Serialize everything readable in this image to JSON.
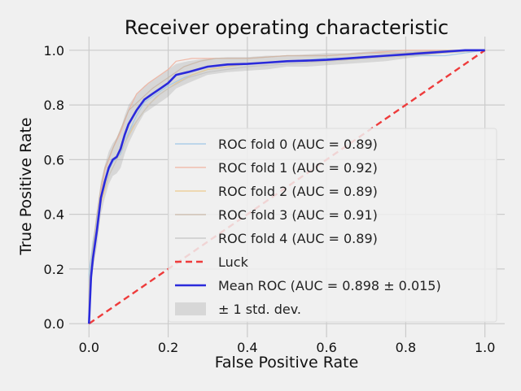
{
  "chart_data": {
    "type": "line",
    "title": "Receiver operating characteristic",
    "xlabel": "False Positive Rate",
    "ylabel": "True Positive Rate",
    "xlim": [
      -0.05,
      1.05
    ],
    "ylim": [
      -0.05,
      1.05
    ],
    "xticks": [
      0.0,
      0.2,
      0.4,
      0.6,
      0.8,
      1.0
    ],
    "yticks": [
      0.0,
      0.2,
      0.4,
      0.6,
      0.8,
      1.0
    ],
    "xtick_labels": [
      "0.0",
      "0.2",
      "0.4",
      "0.6",
      "0.8",
      "1.0"
    ],
    "ytick_labels": [
      "0.0",
      "0.2",
      "0.4",
      "0.6",
      "0.8",
      "1.0"
    ],
    "grid": true,
    "legend_position": "lower-right",
    "series": [
      {
        "name": "ROC fold 0 (AUC = 0.89)",
        "color": "#9ec6e6",
        "x": [
          0,
          0,
          0.01,
          0.02,
          0.03,
          0.04,
          0.05,
          0.06,
          0.08,
          0.1,
          0.12,
          0.14,
          0.17,
          0.2,
          0.24,
          0.3,
          0.4,
          0.5,
          0.6,
          0.7,
          0.8,
          0.9,
          1.0
        ],
        "y": [
          0,
          0.18,
          0.3,
          0.38,
          0.46,
          0.52,
          0.56,
          0.59,
          0.62,
          0.7,
          0.76,
          0.81,
          0.84,
          0.87,
          0.9,
          0.93,
          0.95,
          0.96,
          0.97,
          0.97,
          0.98,
          0.98,
          1.0
        ]
      },
      {
        "name": "ROC fold 1 (AUC = 0.92)",
        "color": "#f0b3a0",
        "x": [
          0,
          0,
          0.01,
          0.02,
          0.03,
          0.04,
          0.06,
          0.08,
          0.1,
          0.12,
          0.15,
          0.18,
          0.2,
          0.22,
          0.26,
          0.3,
          0.4,
          0.5,
          0.6,
          0.7,
          0.8,
          0.9,
          1.0
        ],
        "y": [
          0,
          0.12,
          0.24,
          0.36,
          0.48,
          0.56,
          0.64,
          0.7,
          0.78,
          0.84,
          0.88,
          0.91,
          0.93,
          0.96,
          0.97,
          0.97,
          0.97,
          0.98,
          0.98,
          0.99,
          1.0,
          1.0,
          1.0
        ]
      },
      {
        "name": "ROC fold 2 (AUC = 0.89)",
        "color": "#ecc98c",
        "x": [
          0,
          0,
          0.01,
          0.02,
          0.03,
          0.05,
          0.07,
          0.09,
          0.12,
          0.15,
          0.18,
          0.22,
          0.26,
          0.3,
          0.35,
          0.4,
          0.5,
          0.6,
          0.7,
          0.8,
          0.9,
          1.0
        ],
        "y": [
          0,
          0.1,
          0.22,
          0.34,
          0.44,
          0.54,
          0.6,
          0.66,
          0.74,
          0.8,
          0.84,
          0.88,
          0.91,
          0.93,
          0.94,
          0.95,
          0.96,
          0.96,
          0.97,
          0.98,
          0.99,
          1.0
        ]
      },
      {
        "name": "ROC fold 3 (AUC = 0.91)",
        "color": "#c9b8a8",
        "x": [
          0,
          0,
          0.01,
          0.02,
          0.03,
          0.04,
          0.06,
          0.08,
          0.1,
          0.13,
          0.16,
          0.2,
          0.24,
          0.28,
          0.32,
          0.4,
          0.5,
          0.6,
          0.7,
          0.8,
          0.9,
          1.0
        ],
        "y": [
          0,
          0.14,
          0.28,
          0.4,
          0.5,
          0.57,
          0.64,
          0.71,
          0.78,
          0.82,
          0.86,
          0.9,
          0.94,
          0.96,
          0.97,
          0.97,
          0.98,
          0.98,
          0.99,
          0.99,
          1.0,
          1.0
        ]
      },
      {
        "name": "ROC fold 4 (AUC = 0.89)",
        "color": "#c4c4c4",
        "x": [
          0,
          0,
          0.01,
          0.02,
          0.03,
          0.05,
          0.07,
          0.09,
          0.11,
          0.14,
          0.17,
          0.2,
          0.25,
          0.3,
          0.4,
          0.5,
          0.6,
          0.7,
          0.8,
          0.9,
          1.0
        ],
        "y": [
          0,
          0.16,
          0.26,
          0.36,
          0.46,
          0.54,
          0.6,
          0.66,
          0.72,
          0.78,
          0.83,
          0.86,
          0.9,
          0.92,
          0.94,
          0.95,
          0.96,
          0.97,
          0.98,
          0.99,
          1.0
        ]
      }
    ],
    "luck": {
      "name": "Luck",
      "color": "#ee3b3b",
      "x": [
        0,
        1
      ],
      "y": [
        0,
        1
      ]
    },
    "mean": {
      "name": "Mean ROC (AUC = 0.898 ± 0.015)",
      "color": "#2a2adb",
      "x": [
        0,
        0.005,
        0.01,
        0.02,
        0.03,
        0.04,
        0.05,
        0.06,
        0.07,
        0.08,
        0.09,
        0.1,
        0.12,
        0.14,
        0.16,
        0.18,
        0.2,
        0.22,
        0.25,
        0.3,
        0.35,
        0.4,
        0.45,
        0.5,
        0.55,
        0.6,
        0.65,
        0.7,
        0.75,
        0.8,
        0.85,
        0.9,
        0.95,
        1.0
      ],
      "y": [
        0,
        0.17,
        0.24,
        0.34,
        0.46,
        0.52,
        0.57,
        0.6,
        0.61,
        0.64,
        0.69,
        0.73,
        0.78,
        0.82,
        0.84,
        0.86,
        0.88,
        0.91,
        0.92,
        0.94,
        0.948,
        0.95,
        0.955,
        0.96,
        0.962,
        0.965,
        0.97,
        0.975,
        0.98,
        0.985,
        0.99,
        0.995,
        1.0,
        1.0
      ]
    },
    "std_band": {
      "name": "± 1 std. dev.",
      "color": "#aaaaaa",
      "upper": [
        0,
        0.2,
        0.28,
        0.4,
        0.52,
        0.58,
        0.63,
        0.66,
        0.68,
        0.71,
        0.76,
        0.8,
        0.84,
        0.87,
        0.89,
        0.91,
        0.93,
        0.95,
        0.96,
        0.97,
        0.975,
        0.975,
        0.98,
        0.98,
        0.985,
        0.99,
        0.99,
        0.995,
        1.0,
        1.0,
        1.0,
        1.0,
        1.0,
        1.0
      ],
      "lower": [
        0,
        0.12,
        0.2,
        0.28,
        0.4,
        0.46,
        0.51,
        0.54,
        0.55,
        0.57,
        0.62,
        0.66,
        0.72,
        0.77,
        0.79,
        0.81,
        0.83,
        0.86,
        0.88,
        0.91,
        0.92,
        0.925,
        0.93,
        0.94,
        0.94,
        0.945,
        0.95,
        0.955,
        0.96,
        0.97,
        0.98,
        0.99,
        1.0,
        1.0
      ]
    }
  }
}
